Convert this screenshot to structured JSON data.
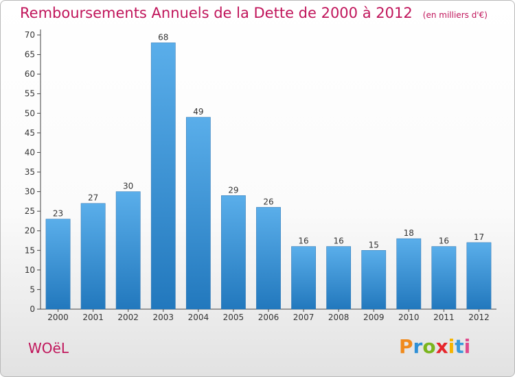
{
  "chart_data": {
    "type": "bar",
    "title": "Remboursements Annuels de la Dette de 2000 à 2012",
    "unit": "(en milliers d'€)",
    "categories": [
      "2000",
      "2001",
      "2002",
      "2003",
      "2004",
      "2005",
      "2006",
      "2007",
      "2008",
      "2009",
      "2010",
      "2011",
      "2012"
    ],
    "values": [
      23,
      27,
      30,
      68,
      49,
      29,
      26,
      16,
      16,
      15,
      18,
      16,
      17
    ],
    "ylim": [
      0,
      70
    ],
    "yticks": [
      0,
      5,
      10,
      15,
      20,
      25,
      30,
      35,
      40,
      45,
      50,
      55,
      60,
      65,
      70
    ],
    "grid": false,
    "colors": {
      "bar_top": "#5aaeea",
      "bar_bottom": "#2278bd",
      "title": "#c0145a"
    }
  },
  "footer": {
    "commune": "WOëL",
    "brand": "Proxiti",
    "brand_colors": [
      "#f08a1c",
      "#2e8fd6",
      "#7ab51d",
      "#e6262c",
      "#f5b400",
      "#3a9ad9",
      "#e04a8c"
    ]
  }
}
